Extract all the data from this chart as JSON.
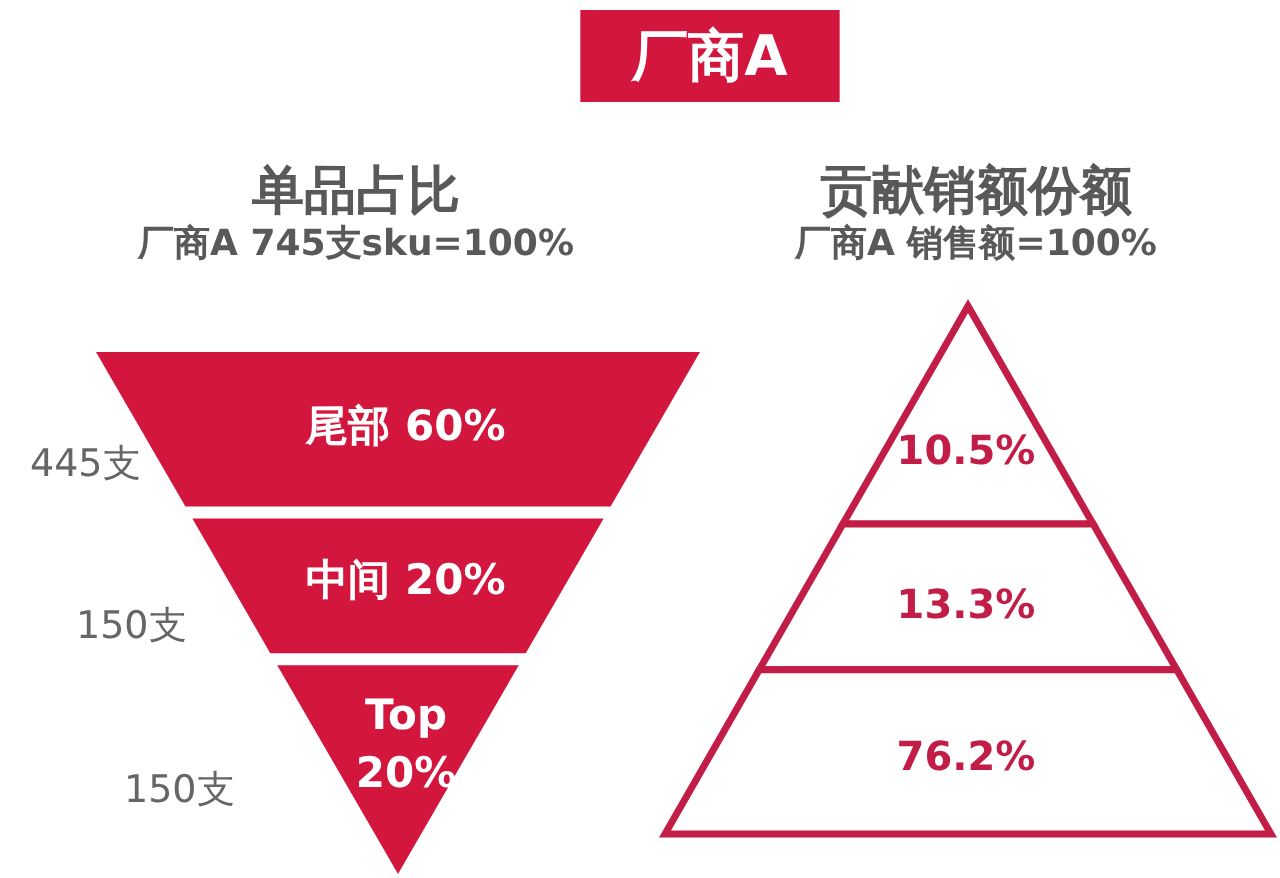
{
  "chart_data": [
    {
      "type": "other",
      "title": "单品占比",
      "subtitle": "厂商A 745支sku=100%",
      "annotations": [
        "厂商A"
      ],
      "categories": [
        "尾部",
        "中间",
        "Top"
      ],
      "series": [
        {
          "values": [
            60,
            20,
            20
          ],
          "value_labels": [
            "60%",
            "20%",
            "20%"
          ],
          "color": "#d3163d"
        },
        {
          "values": [
            445,
            150,
            150
          ],
          "value_labels": [
            "445支",
            "150支",
            "150支"
          ],
          "color": "#666666"
        }
      ]
    },
    {
      "type": "other",
      "title": "贡献销额份额",
      "subtitle": "厂商A 销售额=100%",
      "categories": [
        null,
        null,
        null
      ],
      "values": [
        10.5,
        13.3,
        76.2
      ],
      "value_labels": [
        "10.5%",
        "13.3%",
        "76.2%"
      ],
      "color": "#c21d47"
    }
  ]
}
